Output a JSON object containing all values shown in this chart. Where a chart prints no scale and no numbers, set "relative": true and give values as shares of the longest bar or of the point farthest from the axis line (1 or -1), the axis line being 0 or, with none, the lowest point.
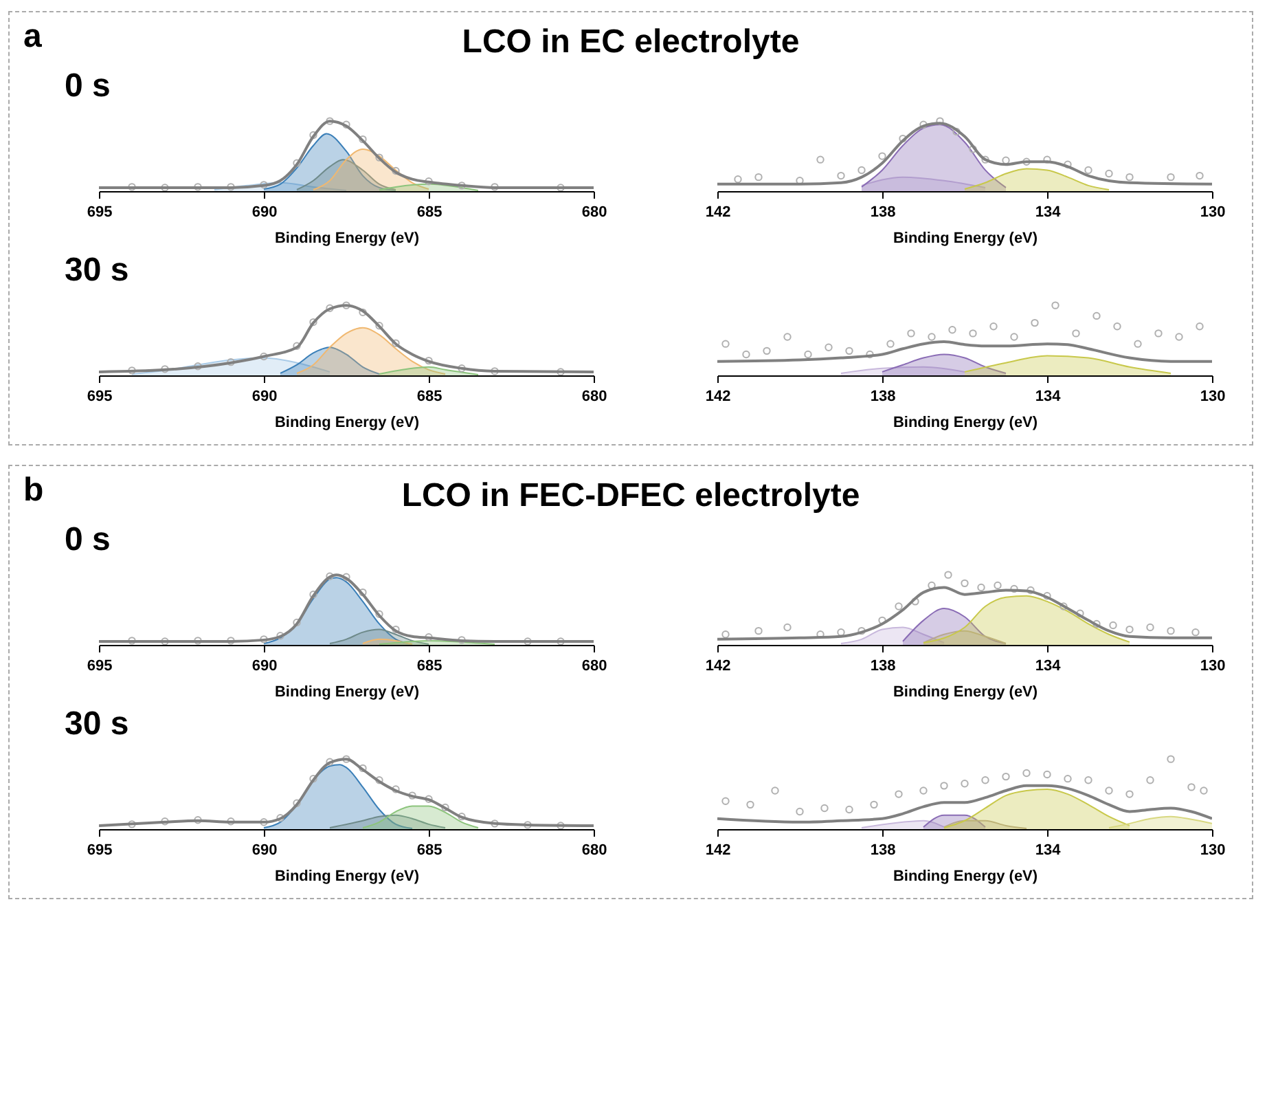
{
  "chart_data": [
    {
      "type": "line",
      "title": "LCO in EC electrolyte",
      "annotations": [
        "a",
        "0 s"
      ],
      "relative": true,
      "xlabel": "Binding Energy (eV)",
      "xlim": [
        695,
        680
      ],
      "xticks": [
        695,
        690,
        685,
        680
      ],
      "series": [
        {
          "type": "scatter",
          "marker": "circle",
          "color": "#b0b0b0",
          "x": [
            694,
            693,
            692,
            691,
            690,
            689,
            688.5,
            688,
            687.5,
            687,
            686.5,
            686,
            685,
            684,
            683,
            681
          ],
          "values": [
            0.06,
            0.05,
            0.06,
            0.06,
            0.09,
            0.4,
            0.8,
            1.0,
            0.95,
            0.74,
            0.48,
            0.29,
            0.14,
            0.08,
            0.06,
            0.05
          ]
        },
        {
          "type": "area",
          "color": "#a9cbe8",
          "x": [
            691.5,
            690.5,
            689.5,
            688.5,
            687.5
          ],
          "values": [
            0.02,
            0.08,
            0.12,
            0.06,
            0.01
          ]
        },
        {
          "type": "area",
          "color": "#3a7fb8",
          "x": [
            690,
            689.5,
            689,
            688.5,
            688.1,
            687.5,
            687,
            686.5,
            686
          ],
          "values": [
            0.03,
            0.1,
            0.33,
            0.65,
            0.82,
            0.57,
            0.22,
            0.05,
            0.01
          ]
        },
        {
          "type": "area",
          "color": "#6e8a8a",
          "x": [
            689,
            688.5,
            688,
            687.6,
            687,
            686.5,
            686
          ],
          "values": [
            0.02,
            0.15,
            0.35,
            0.45,
            0.3,
            0.1,
            0.02
          ]
        },
        {
          "type": "area",
          "color": "#f0b870",
          "x": [
            688.5,
            688,
            687.5,
            687,
            686.5,
            686,
            685.5,
            685
          ],
          "values": [
            0.02,
            0.15,
            0.45,
            0.6,
            0.5,
            0.3,
            0.12,
            0.03
          ]
        },
        {
          "type": "area",
          "color": "#8cc47c",
          "x": [
            686.5,
            686,
            685,
            684,
            683.5
          ],
          "values": [
            0.02,
            0.06,
            0.1,
            0.05,
            0.01
          ]
        },
        {
          "type": "line",
          "color": "#808080",
          "x": [
            695,
            691,
            690,
            689.5,
            689,
            688.5,
            688,
            687.5,
            687,
            686.5,
            686,
            685.5,
            685,
            684,
            683,
            680
          ],
          "values": [
            0.05,
            0.05,
            0.08,
            0.15,
            0.38,
            0.78,
            1.0,
            0.93,
            0.72,
            0.47,
            0.27,
            0.17,
            0.13,
            0.08,
            0.05,
            0.05
          ]
        }
      ]
    },
    {
      "type": "line",
      "relative": true,
      "xlabel": "Binding Energy (eV)",
      "xlim": [
        142,
        130
      ],
      "xticks": [
        142,
        138,
        134,
        130
      ],
      "series": [
        {
          "type": "scatter",
          "marker": "circle",
          "color": "#b0b0b0",
          "x": [
            141.5,
            141,
            140,
            139.5,
            139,
            138.5,
            138,
            137.5,
            137,
            136.6,
            136.2,
            135.8,
            135.5,
            135,
            134.5,
            134,
            133.5,
            133,
            132.5,
            132,
            131,
            130.3
          ],
          "values": [
            0.17,
            0.2,
            0.15,
            0.45,
            0.22,
            0.3,
            0.5,
            0.75,
            0.95,
            1.0,
            0.85,
            0.6,
            0.45,
            0.44,
            0.42,
            0.45,
            0.38,
            0.3,
            0.25,
            0.2,
            0.2,
            0.22
          ]
        },
        {
          "type": "area",
          "color": "#c8b8dc",
          "x": [
            138.5,
            137.5,
            136.5,
            135.5
          ],
          "values": [
            0.08,
            0.2,
            0.15,
            0.05
          ]
        },
        {
          "type": "area",
          "color": "#8a6cb5",
          "x": [
            138.5,
            138,
            137.5,
            137,
            136.6,
            136,
            135.5,
            135
          ],
          "values": [
            0.06,
            0.3,
            0.65,
            0.9,
            0.95,
            0.7,
            0.3,
            0.05
          ]
        },
        {
          "type": "area",
          "color": "#c8c84a",
          "x": [
            136,
            135.5,
            135,
            134.5,
            134,
            133.5,
            133,
            132.5
          ],
          "values": [
            0.03,
            0.12,
            0.25,
            0.32,
            0.3,
            0.2,
            0.08,
            0.02
          ]
        },
        {
          "type": "line",
          "color": "#808080",
          "x": [
            142,
            140,
            139,
            138.5,
            138,
            137.5,
            137,
            136.6,
            136,
            135.5,
            135,
            134.5,
            134,
            133.5,
            133,
            132,
            130
          ],
          "values": [
            0.1,
            0.1,
            0.12,
            0.2,
            0.4,
            0.72,
            0.93,
            0.97,
            0.78,
            0.45,
            0.38,
            0.42,
            0.42,
            0.35,
            0.22,
            0.12,
            0.1
          ]
        }
      ]
    },
    {
      "type": "line",
      "annotations": [
        "30 s"
      ],
      "relative": true,
      "xlabel": "Binding Energy (eV)",
      "xlim": [
        695,
        680
      ],
      "xticks": [
        695,
        690,
        685,
        680
      ],
      "series": [
        {
          "type": "scatter",
          "marker": "circle",
          "color": "#b0b0b0",
          "x": [
            694,
            693,
            692,
            691,
            690,
            689,
            688.5,
            688,
            687.5,
            687,
            686.5,
            686,
            685,
            684,
            683,
            681
          ],
          "values": [
            0.07,
            0.09,
            0.13,
            0.19,
            0.27,
            0.42,
            0.76,
            0.96,
            1.0,
            0.9,
            0.71,
            0.46,
            0.21,
            0.1,
            0.06,
            0.05
          ]
        },
        {
          "type": "area",
          "color": "#a9cbe8",
          "x": [
            694,
            693,
            692,
            691,
            690,
            689,
            688
          ],
          "values": [
            0.02,
            0.07,
            0.15,
            0.22,
            0.25,
            0.18,
            0.05
          ]
        },
        {
          "type": "area",
          "color": "#3a7fb8",
          "x": [
            689.5,
            689,
            688.5,
            688,
            687.5,
            687,
            686.5
          ],
          "values": [
            0.03,
            0.15,
            0.32,
            0.4,
            0.3,
            0.12,
            0.02
          ]
        },
        {
          "type": "area",
          "color": "#f0b870",
          "x": [
            689,
            688.5,
            688,
            687.5,
            687,
            686.5,
            686,
            685.5,
            685,
            684.5
          ],
          "values": [
            0.03,
            0.15,
            0.4,
            0.6,
            0.68,
            0.58,
            0.38,
            0.2,
            0.08,
            0.02
          ]
        },
        {
          "type": "area",
          "color": "#8cc47c",
          "x": [
            686.5,
            685.5,
            685,
            684.5,
            683.5
          ],
          "values": [
            0.02,
            0.1,
            0.12,
            0.08,
            0.01
          ]
        },
        {
          "type": "line",
          "color": "#808080",
          "x": [
            695,
            693,
            691,
            690,
            689,
            688.5,
            688,
            687.5,
            687,
            686.5,
            686,
            685.5,
            685,
            684,
            683,
            680
          ],
          "values": [
            0.05,
            0.08,
            0.18,
            0.27,
            0.4,
            0.75,
            0.95,
            1.0,
            0.92,
            0.7,
            0.45,
            0.3,
            0.2,
            0.1,
            0.06,
            0.05
          ]
        }
      ]
    },
    {
      "type": "line",
      "relative": true,
      "xlabel": "Binding Energy (eV)",
      "xlim": [
        142,
        130
      ],
      "xticks": [
        142,
        138,
        134,
        130
      ],
      "series": [
        {
          "type": "scatter",
          "marker": "circle",
          "color": "#b0b0b0",
          "x": [
            141.8,
            141.3,
            140.8,
            140.3,
            139.8,
            139.3,
            138.8,
            138.3,
            137.8,
            137.3,
            136.8,
            136.3,
            135.8,
            135.3,
            134.8,
            134.3,
            133.8,
            133.3,
            132.8,
            132.3,
            131.8,
            131.3,
            130.8,
            130.3
          ],
          "values": [
            0.45,
            0.3,
            0.35,
            0.55,
            0.3,
            0.4,
            0.35,
            0.3,
            0.45,
            0.6,
            0.55,
            0.65,
            0.6,
            0.7,
            0.55,
            0.75,
            1.0,
            0.6,
            0.85,
            0.7,
            0.45,
            0.6,
            0.55,
            0.7
          ]
        },
        {
          "type": "area",
          "color": "#c8b8dc",
          "x": [
            139,
            138,
            137,
            136
          ],
          "values": [
            0.03,
            0.1,
            0.12,
            0.05
          ]
        },
        {
          "type": "area",
          "color": "#8a6cb5",
          "x": [
            138,
            137.5,
            137,
            136.5,
            136,
            135.5,
            135
          ],
          "values": [
            0.05,
            0.15,
            0.25,
            0.3,
            0.25,
            0.12,
            0.03
          ]
        },
        {
          "type": "area",
          "color": "#c8c84a",
          "x": [
            136,
            135,
            134,
            133,
            132,
            131
          ],
          "values": [
            0.05,
            0.18,
            0.28,
            0.25,
            0.12,
            0.03
          ]
        },
        {
          "type": "line",
          "color": "#808080",
          "x": [
            142,
            140,
            139,
            138,
            137.5,
            137,
            136.5,
            136,
            135.5,
            135,
            134,
            133.5,
            133,
            132,
            131,
            130
          ],
          "values": [
            0.2,
            0.22,
            0.25,
            0.3,
            0.38,
            0.45,
            0.48,
            0.44,
            0.42,
            0.42,
            0.45,
            0.44,
            0.38,
            0.25,
            0.2,
            0.2
          ]
        }
      ]
    },
    {
      "type": "line",
      "title": "LCO in FEC-DFEC electrolyte",
      "annotations": [
        "b",
        "0 s"
      ],
      "relative": true,
      "xlabel": "Binding Energy (eV)",
      "xlim": [
        695,
        680
      ],
      "xticks": [
        695,
        690,
        685,
        680
      ],
      "series": [
        {
          "type": "scatter",
          "marker": "circle",
          "color": "#b0b0b0",
          "x": [
            694,
            693,
            692,
            691,
            690,
            689.5,
            689,
            688.5,
            688,
            687.5,
            687,
            686.5,
            686,
            685,
            684,
            682,
            681
          ],
          "values": [
            0.06,
            0.05,
            0.06,
            0.06,
            0.08,
            0.13,
            0.32,
            0.72,
            0.98,
            0.97,
            0.75,
            0.44,
            0.22,
            0.11,
            0.07,
            0.05,
            0.05
          ]
        },
        {
          "type": "area",
          "color": "#3a7fb8",
          "x": [
            690,
            689.5,
            689,
            688.5,
            688,
            687.8,
            687.5,
            687,
            686.5,
            686,
            685.5
          ],
          "values": [
            0.02,
            0.1,
            0.3,
            0.66,
            0.94,
            0.96,
            0.9,
            0.62,
            0.3,
            0.08,
            0.01
          ]
        },
        {
          "type": "area",
          "color": "#6e8a8a",
          "x": [
            688,
            687.5,
            687,
            686.5,
            686,
            685.5,
            685
          ],
          "values": [
            0.02,
            0.08,
            0.18,
            0.22,
            0.15,
            0.06,
            0.01
          ]
        },
        {
          "type": "area",
          "color": "#f0b870",
          "x": [
            687,
            686.5,
            686,
            685.5
          ],
          "values": [
            0.02,
            0.08,
            0.06,
            0.01
          ]
        },
        {
          "type": "area",
          "color": "#8cc47c",
          "x": [
            686.5,
            685.5,
            685,
            684,
            683
          ],
          "values": [
            0.01,
            0.05,
            0.06,
            0.04,
            0.01
          ]
        },
        {
          "type": "line",
          "color": "#808080",
          "x": [
            695,
            691,
            690,
            689.5,
            689,
            688.5,
            688,
            687.8,
            687.5,
            687,
            686.5,
            686,
            685.5,
            685,
            684,
            683,
            680
          ],
          "values": [
            0.05,
            0.05,
            0.07,
            0.12,
            0.3,
            0.7,
            0.97,
            1.0,
            0.95,
            0.72,
            0.42,
            0.2,
            0.12,
            0.1,
            0.06,
            0.05,
            0.05
          ]
        }
      ]
    },
    {
      "type": "line",
      "relative": true,
      "xlabel": "Binding Energy (eV)",
      "xlim": [
        142,
        130
      ],
      "xticks": [
        142,
        138,
        134,
        130
      ],
      "series": [
        {
          "type": "scatter",
          "marker": "circle",
          "color": "#b0b0b0",
          "x": [
            141.8,
            141,
            140.3,
            139.5,
            139,
            138.5,
            138,
            137.6,
            137.2,
            136.8,
            136.4,
            136,
            135.6,
            135.2,
            134.8,
            134.4,
            134,
            133.6,
            133.2,
            132.8,
            132.4,
            132,
            131.5,
            131,
            130.4
          ],
          "values": [
            0.15,
            0.2,
            0.25,
            0.15,
            0.18,
            0.2,
            0.35,
            0.55,
            0.62,
            0.85,
            1.0,
            0.88,
            0.82,
            0.85,
            0.8,
            0.78,
            0.7,
            0.55,
            0.45,
            0.3,
            0.28,
            0.22,
            0.25,
            0.2,
            0.18
          ]
        },
        {
          "type": "area",
          "color": "#c8b8dc",
          "x": [
            139,
            138.5,
            138,
            137.5,
            137,
            136.5
          ],
          "values": [
            0.02,
            0.08,
            0.22,
            0.25,
            0.15,
            0.03
          ]
        },
        {
          "type": "area",
          "color": "#8a6cb5",
          "x": [
            137.5,
            137,
            136.5,
            136,
            135.5,
            135
          ],
          "values": [
            0.05,
            0.35,
            0.52,
            0.4,
            0.12,
            0.02
          ]
        },
        {
          "type": "area",
          "color": "#b8a890",
          "x": [
            137,
            136.5,
            136,
            135.5,
            135
          ],
          "values": [
            0.03,
            0.15,
            0.2,
            0.12,
            0.02
          ]
        },
        {
          "type": "area",
          "color": "#c8c84a",
          "x": [
            137,
            136,
            135.5,
            135,
            134.5,
            134,
            133.5,
            133,
            132.5,
            132
          ],
          "values": [
            0.03,
            0.25,
            0.55,
            0.68,
            0.7,
            0.62,
            0.48,
            0.3,
            0.15,
            0.04
          ]
        },
        {
          "type": "line",
          "color": "#808080",
          "x": [
            142,
            140,
            139,
            138.5,
            138,
            137.5,
            137,
            136.5,
            136,
            135.5,
            135,
            134.5,
            134,
            133.5,
            133,
            132.5,
            132,
            131,
            130
          ],
          "values": [
            0.08,
            0.1,
            0.12,
            0.18,
            0.3,
            0.5,
            0.75,
            0.82,
            0.72,
            0.75,
            0.78,
            0.77,
            0.68,
            0.52,
            0.35,
            0.2,
            0.12,
            0.1,
            0.1
          ]
        }
      ]
    },
    {
      "type": "line",
      "annotations": [
        "30 s"
      ],
      "relative": true,
      "xlabel": "Binding Energy (eV)",
      "xlim": [
        695,
        680
      ],
      "xticks": [
        695,
        690,
        685,
        680
      ],
      "series": [
        {
          "type": "scatter",
          "marker": "circle",
          "color": "#b0b0b0",
          "x": [
            694,
            693,
            692,
            691,
            690,
            689.5,
            689,
            688.5,
            688,
            687.5,
            687,
            686.5,
            686,
            685.5,
            685,
            684.5,
            684,
            683,
            682,
            681
          ],
          "values": [
            0.07,
            0.11,
            0.13,
            0.11,
            0.1,
            0.16,
            0.37,
            0.72,
            0.96,
            1.0,
            0.87,
            0.7,
            0.57,
            0.48,
            0.43,
            0.31,
            0.18,
            0.08,
            0.06,
            0.05
          ]
        },
        {
          "type": "area",
          "color": "#3a7fb8",
          "x": [
            690,
            689.5,
            689,
            688.5,
            688,
            687.7,
            687.5,
            687,
            686.5,
            686,
            685.5
          ],
          "values": [
            0.02,
            0.1,
            0.35,
            0.7,
            0.9,
            0.92,
            0.88,
            0.6,
            0.28,
            0.07,
            0.01
          ]
        },
        {
          "type": "area",
          "color": "#6e8a8a",
          "x": [
            688,
            687,
            686.5,
            686,
            685.5,
            685,
            684.5
          ],
          "values": [
            0.02,
            0.12,
            0.18,
            0.2,
            0.15,
            0.07,
            0.02
          ]
        },
        {
          "type": "area",
          "color": "#8cc47c",
          "x": [
            687,
            686.5,
            686,
            685.5,
            685,
            684.5,
            684,
            683.5
          ],
          "values": [
            0.02,
            0.1,
            0.25,
            0.33,
            0.33,
            0.24,
            0.1,
            0.02
          ]
        },
        {
          "type": "line",
          "color": "#808080",
          "x": [
            695,
            693,
            692,
            691,
            690,
            689.5,
            689,
            688.5,
            688,
            687.5,
            687,
            686.5,
            686,
            685.5,
            685,
            684.5,
            684,
            683,
            682,
            680
          ],
          "values": [
            0.05,
            0.1,
            0.12,
            0.1,
            0.1,
            0.15,
            0.35,
            0.7,
            0.95,
            1.0,
            0.85,
            0.68,
            0.55,
            0.47,
            0.42,
            0.3,
            0.17,
            0.08,
            0.06,
            0.05
          ]
        }
      ]
    },
    {
      "type": "line",
      "relative": true,
      "xlabel": "Binding Energy (eV)",
      "xlim": [
        142,
        130
      ],
      "xticks": [
        142,
        138,
        134,
        130
      ],
      "series": [
        {
          "type": "scatter",
          "marker": "circle",
          "color": "#b0b0b0",
          "x": [
            141.8,
            141.2,
            140.6,
            140,
            139.4,
            138.8,
            138.2,
            137.6,
            137,
            136.5,
            136,
            135.5,
            135,
            134.5,
            134,
            133.5,
            133,
            132.5,
            132,
            131.5,
            131,
            130.5,
            130.2
          ],
          "values": [
            0.4,
            0.35,
            0.55,
            0.25,
            0.3,
            0.28,
            0.35,
            0.5,
            0.55,
            0.62,
            0.65,
            0.7,
            0.75,
            0.8,
            0.78,
            0.72,
            0.7,
            0.55,
            0.5,
            0.7,
            1.0,
            0.6,
            0.55
          ]
        },
        {
          "type": "area",
          "color": "#c8b8dc",
          "x": [
            138.5,
            137.5,
            137,
            136.5
          ],
          "values": [
            0.02,
            0.1,
            0.12,
            0.03
          ]
        },
        {
          "type": "area",
          "color": "#8a6cb5",
          "x": [
            137,
            136.5,
            136,
            135.5
          ],
          "values": [
            0.03,
            0.2,
            0.2,
            0.03
          ]
        },
        {
          "type": "area",
          "color": "#b8a890",
          "x": [
            136.5,
            136,
            135.5,
            135,
            134.5
          ],
          "values": [
            0.03,
            0.12,
            0.12,
            0.05,
            0.01
          ]
        },
        {
          "type": "area",
          "color": "#c8c84a",
          "x": [
            136.5,
            136,
            135.5,
            135,
            134.5,
            134,
            133.5,
            133,
            132.5,
            132
          ],
          "values": [
            0.02,
            0.12,
            0.3,
            0.48,
            0.55,
            0.57,
            0.5,
            0.35,
            0.18,
            0.05
          ]
        },
        {
          "type": "area",
          "color": "#d8d880",
          "x": [
            132.5,
            132,
            131.5,
            131,
            130.5,
            130
          ],
          "values": [
            0.02,
            0.08,
            0.15,
            0.18,
            0.14,
            0.08
          ]
        },
        {
          "type": "line",
          "color": "#808080",
          "x": [
            142,
            140,
            139,
            138,
            137.5,
            137,
            136.5,
            136,
            135.5,
            135,
            134.5,
            134,
            133.5,
            133,
            132.5,
            132,
            131.5,
            131,
            130.5,
            130
          ],
          "values": [
            0.15,
            0.1,
            0.12,
            0.15,
            0.22,
            0.32,
            0.38,
            0.38,
            0.45,
            0.55,
            0.62,
            0.62,
            0.58,
            0.48,
            0.35,
            0.25,
            0.28,
            0.3,
            0.25,
            0.15
          ]
        }
      ]
    }
  ]
}
